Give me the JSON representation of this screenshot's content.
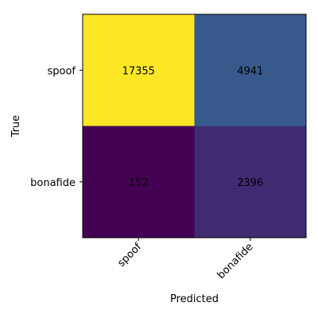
{
  "chart_data": {
    "type": "heatmap",
    "title": "",
    "xlabel": "Predicted",
    "ylabel": "True",
    "x_categories": [
      "spoof",
      "bonafide"
    ],
    "y_categories": [
      "spoof",
      "bonafide"
    ],
    "values": [
      [
        17355,
        4941
      ],
      [
        152,
        2396
      ]
    ],
    "value_labels": [
      [
        "17355",
        "4941"
      ],
      [
        "152",
        "2396"
      ]
    ],
    "x_tick_rotation": "45deg",
    "colormap": "viridis",
    "grid": false,
    "legend": "none"
  },
  "colors": {
    "high": "#fde725",
    "mid_high": "#3b5a8d",
    "mid_low": "#472d7b",
    "low": "#440154"
  }
}
